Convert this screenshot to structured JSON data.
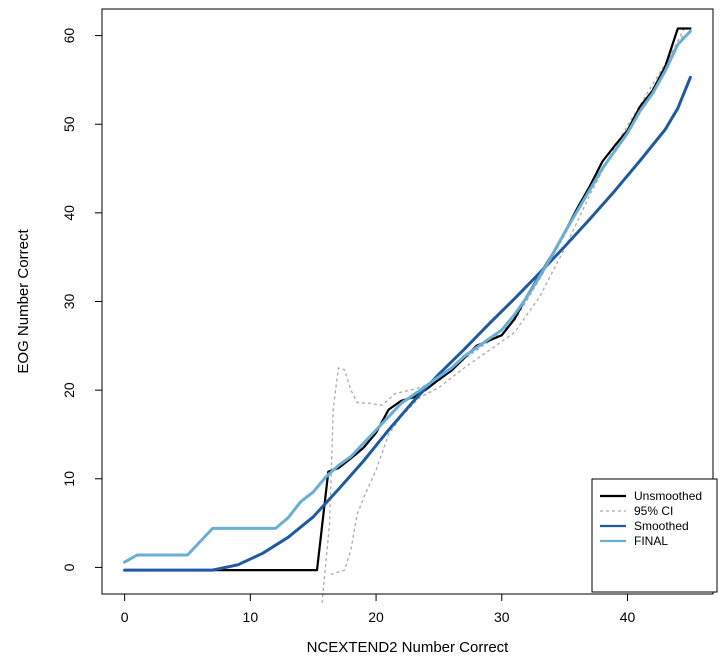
{
  "chart_data": {
    "type": "line",
    "xlabel": "NCEXTEND2 Number Correct",
    "ylabel": "EOG Number Correct",
    "xlim": [
      -1.8,
      46.8
    ],
    "ylim": [
      -3,
      63
    ],
    "xticks": [
      0,
      10,
      20,
      30,
      40
    ],
    "yticks": [
      0,
      10,
      20,
      30,
      40,
      50,
      60
    ],
    "legend_position": "bottom-right",
    "series": [
      {
        "name": "95% CI",
        "color": "#aaaaaa",
        "style": "dotted",
        "lines": [
          [
            [
              15.7,
              -4
            ],
            [
              16.3,
              5
            ],
            [
              16.6,
              18
            ],
            [
              17.0,
              22.5
            ],
            [
              17.5,
              22.3
            ],
            [
              18.0,
              20
            ],
            [
              18.5,
              18.6
            ],
            [
              19.5,
              18.5
            ],
            [
              20.5,
              18.3
            ],
            [
              21.5,
              19.6
            ],
            [
              23,
              20.1
            ],
            [
              25,
              21
            ],
            [
              27,
              23.5
            ],
            [
              29,
              25.5
            ],
            [
              31,
              27.8
            ],
            [
              33,
              32.5
            ],
            [
              35,
              37.5
            ],
            [
              37,
              43
            ],
            [
              39,
              47
            ],
            [
              40.5,
              50.5
            ],
            [
              42,
              54
            ],
            [
              43.5,
              58
            ],
            [
              44.5,
              60.8
            ]
          ],
          [
            [
              16.4,
              -0.8
            ],
            [
              17.5,
              -0.3
            ],
            [
              18.0,
              2
            ],
            [
              18.5,
              6
            ],
            [
              19.2,
              8.5
            ],
            [
              20,
              11
            ],
            [
              21,
              15
            ],
            [
              22,
              17
            ],
            [
              23.5,
              19.2
            ],
            [
              25,
              20.3
            ],
            [
              27,
              22.5
            ],
            [
              29,
              24.5
            ],
            [
              31,
              26.5
            ],
            [
              33,
              30.5
            ],
            [
              35,
              36
            ],
            [
              37,
              42
            ],
            [
              39,
              47.5
            ],
            [
              40.5,
              51
            ],
            [
              42,
              54.5
            ],
            [
              43.5,
              58
            ],
            [
              44.5,
              60.2
            ]
          ]
        ]
      },
      {
        "name": "Unsmoothed",
        "color": "#000000",
        "style": "solid",
        "points": [
          [
            0,
            -0.3
          ],
          [
            15.3,
            -0.3
          ],
          [
            16.2,
            10.8
          ],
          [
            17,
            11.2
          ],
          [
            18,
            12.3
          ],
          [
            19,
            13.5
          ],
          [
            20,
            15.2
          ],
          [
            21,
            17.8
          ],
          [
            22,
            18.8
          ],
          [
            23,
            19.2
          ],
          [
            24,
            20.1
          ],
          [
            25,
            21.2
          ],
          [
            26,
            22.2
          ],
          [
            27,
            23.6
          ],
          [
            28,
            25.0
          ],
          [
            29,
            25.6
          ],
          [
            30,
            26.2
          ],
          [
            31,
            28.0
          ],
          [
            32,
            30.6
          ],
          [
            33,
            33.0
          ],
          [
            34,
            35.3
          ],
          [
            35,
            37.8
          ],
          [
            36,
            40.5
          ],
          [
            37,
            43.0
          ],
          [
            38,
            45.8
          ],
          [
            39,
            47.6
          ],
          [
            40,
            49.3
          ],
          [
            41,
            52.0
          ],
          [
            42,
            53.8
          ],
          [
            43,
            56.5
          ],
          [
            44,
            60.8
          ],
          [
            45,
            60.8
          ]
        ]
      },
      {
        "name": "Smoothed",
        "color": "#1f5aa0",
        "style": "solid",
        "points": [
          [
            0,
            -0.3
          ],
          [
            7,
            -0.3
          ],
          [
            9,
            0.3
          ],
          [
            11,
            1.6
          ],
          [
            13,
            3.4
          ],
          [
            15,
            5.7
          ],
          [
            17,
            8.8
          ],
          [
            19,
            12.0
          ],
          [
            21,
            15.5
          ],
          [
            23,
            18.8
          ],
          [
            25,
            21.8
          ],
          [
            27,
            24.6
          ],
          [
            29,
            27.5
          ],
          [
            31,
            30.3
          ],
          [
            33,
            33.2
          ],
          [
            35,
            36.2
          ],
          [
            37,
            39.3
          ],
          [
            39,
            42.5
          ],
          [
            41,
            45.9
          ],
          [
            43,
            49.4
          ],
          [
            44,
            51.8
          ],
          [
            45,
            55.3
          ]
        ]
      },
      {
        "name": "FINAL",
        "color": "#6aaed6",
        "style": "solid",
        "points": [
          [
            0,
            0.6
          ],
          [
            1,
            1.4
          ],
          [
            5,
            1.4
          ],
          [
            7,
            4.4
          ],
          [
            12,
            4.4
          ],
          [
            13,
            5.6
          ],
          [
            14,
            7.4
          ],
          [
            15,
            8.5
          ],
          [
            16,
            10.2
          ],
          [
            17,
            11.5
          ],
          [
            18,
            12.5
          ],
          [
            19,
            14.0
          ],
          [
            20,
            15.5
          ],
          [
            21,
            17.0
          ],
          [
            22,
            18.5
          ],
          [
            23,
            19.5
          ],
          [
            24,
            20.5
          ],
          [
            25,
            21.5
          ],
          [
            26,
            22.5
          ],
          [
            27,
            23.8
          ],
          [
            28,
            24.8
          ],
          [
            29,
            25.8
          ],
          [
            30,
            26.8
          ],
          [
            31,
            28.5
          ],
          [
            32,
            30.5
          ],
          [
            33,
            32.8
          ],
          [
            34,
            35.2
          ],
          [
            35,
            37.8
          ],
          [
            36,
            40.2
          ],
          [
            37,
            42.6
          ],
          [
            38,
            45.0
          ],
          [
            39,
            47.0
          ],
          [
            40,
            49.0
          ],
          [
            41,
            51.5
          ],
          [
            42,
            53.5
          ],
          [
            43,
            56.0
          ],
          [
            44,
            59.0
          ],
          [
            45,
            60.5
          ]
        ]
      }
    ],
    "legend": [
      {
        "name": "Unsmoothed",
        "color": "#000000",
        "style": "solid"
      },
      {
        "name": "95% CI",
        "color": "#aaaaaa",
        "style": "dotted"
      },
      {
        "name": "Smoothed",
        "color": "#1f5aa0",
        "style": "solid"
      },
      {
        "name": "FINAL",
        "color": "#6aaed6",
        "style": "solid"
      }
    ]
  }
}
